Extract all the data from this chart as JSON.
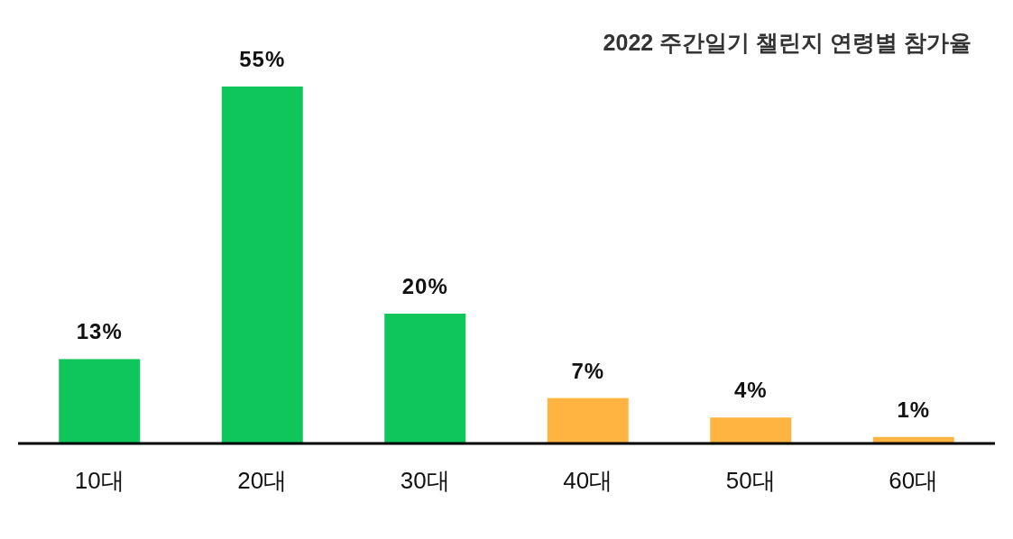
{
  "chart_data": {
    "type": "bar",
    "title": "2022 주간일기 챌린지 연령별 참가율",
    "categories": [
      "10대",
      "20대",
      "30대",
      "40대",
      "50대",
      "60대"
    ],
    "values": [
      13,
      55,
      20,
      7,
      4,
      1
    ],
    "colors": [
      "#0fc65a",
      "#0fc65a",
      "#0fc65a",
      "#ffb341",
      "#ffb341",
      "#ffb341"
    ],
    "value_labels": [
      "13%",
      "55%",
      "20%",
      "7%",
      "4%",
      "1%"
    ]
  }
}
